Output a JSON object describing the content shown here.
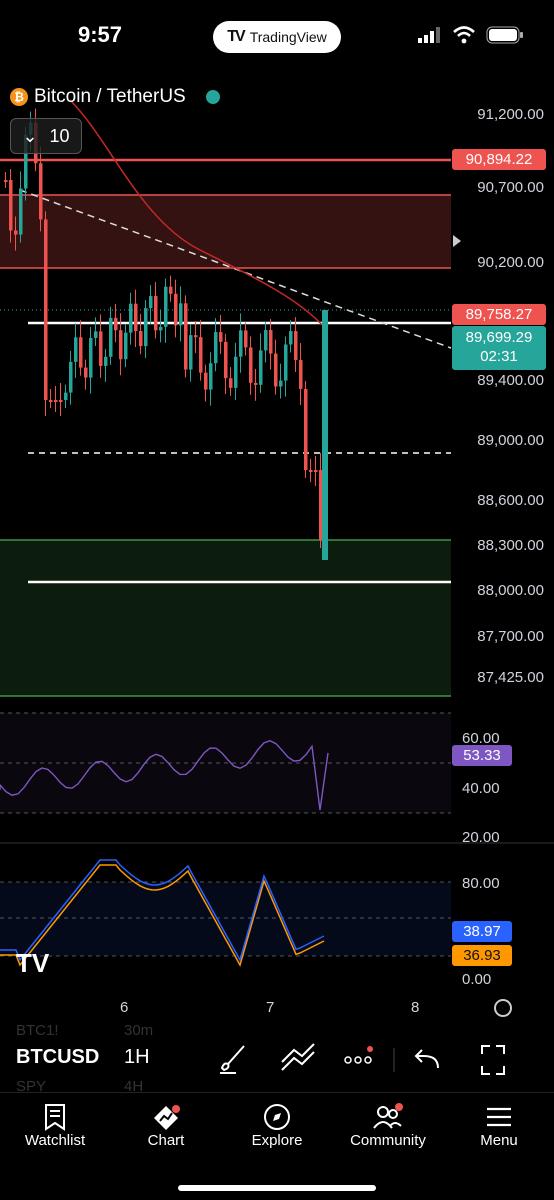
{
  "status_bar": {
    "time": "9:57",
    "app_pill": "TradingView"
  },
  "chart": {
    "symbol_name": "Bitcoin / TetherUS",
    "interval_value": "10",
    "price_axis": [
      "91,200.00",
      "90,700.00",
      "90,200.00",
      "89,400.00",
      "89,000.00",
      "88,600.00",
      "88,300.00",
      "88,000.00",
      "87,700.00",
      "87,425.00"
    ],
    "price_tags": {
      "resistance": "90,894.22",
      "level": "89,758.27",
      "last": "89,699.29",
      "countdown": "02:31"
    },
    "colors": {
      "up": "#26a69a",
      "down": "#ef5350",
      "rsi": "#7e57c2",
      "stoch_k": "#2962ff",
      "stoch_d": "#ff9800"
    }
  },
  "rsi": {
    "axis": [
      "60.00",
      "40.00",
      "20.00"
    ],
    "value": "53.33"
  },
  "stoch": {
    "axis": [
      "80.00",
      "0.00"
    ],
    "k_value": "38.97",
    "d_value": "36.93"
  },
  "time_axis": [
    "6",
    "7",
    "8"
  ],
  "toolbar": {
    "symbol": "BTCUSD",
    "interval": "1H",
    "ghost_symbols": [
      "BTC1!",
      "SPY"
    ],
    "ghost_intervals": [
      "30m",
      "4H"
    ],
    "icons": [
      "brush-icon",
      "trend-line-icon",
      "more-icon",
      "undo-icon",
      "fullscreen-icon"
    ]
  },
  "tabs": [
    {
      "label": "Watchlist",
      "icon": "watchlist-icon"
    },
    {
      "label": "Chart",
      "icon": "chart-icon"
    },
    {
      "label": "Explore",
      "icon": "compass-icon"
    },
    {
      "label": "Community",
      "icon": "community-icon"
    },
    {
      "label": "Menu",
      "icon": "hamburger-icon"
    }
  ]
}
